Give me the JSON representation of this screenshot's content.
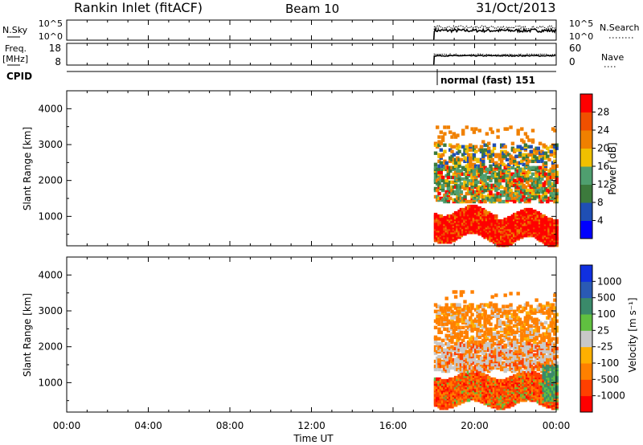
{
  "header": {
    "station": "Rankin Inlet (fitACF)",
    "beam": "Beam 10",
    "date": "31/Oct/2013"
  },
  "strips": {
    "nsky_label": "N.Sky",
    "nsky_ticks": [
      "10^5",
      "10^0"
    ],
    "nsearch_label": "N.Search",
    "nsearch_ticks": [
      "10^5",
      "10^0"
    ],
    "freq_label": "Freq.",
    "freq_unit": "[MHz]",
    "freq_ticks": [
      "18",
      "8"
    ],
    "nave_label": "Nave",
    "nave_ticks": [
      "60",
      "0"
    ],
    "cpid_label": "CPID",
    "cpid_value": "normal (fast) 151"
  },
  "chart_data": [
    {
      "type": "heatmap",
      "name": "power-panel",
      "ylabel": "Slant Range [km]",
      "yticks": [
        "4000",
        "3000",
        "2000",
        "1000"
      ],
      "ytick_values": [
        4000,
        3000,
        2000,
        1000
      ],
      "ylim": [
        180,
        4500
      ],
      "xlim": [
        0,
        24
      ],
      "colorbar": {
        "label": "Power [dB]",
        "ticks": [
          "28",
          "24",
          "20",
          "16",
          "12",
          "8",
          "4"
        ],
        "colors": [
          "#0000ff",
          "#1f4fb4",
          "#3c7a3c",
          "#4f9f6f",
          "#f0c000",
          "#f08000",
          "#f05000",
          "#ff0000"
        ]
      }
    },
    {
      "type": "heatmap",
      "name": "velocity-panel",
      "ylabel": "Slant Range [km]",
      "yticks": [
        "4000",
        "3000",
        "2000",
        "1000"
      ],
      "ytick_values": [
        4000,
        3000,
        2000,
        1000
      ],
      "ylim": [
        180,
        4500
      ],
      "xlim": [
        0,
        24
      ],
      "colorbar": {
        "label": "Velocity [m s⁻¹]",
        "ticks": [
          "1000",
          "500",
          "100",
          "25",
          "-25",
          "-100",
          "-500",
          "-1000"
        ],
        "colors": [
          "#ff0000",
          "#ff4000",
          "#ff8000",
          "#ffb000",
          "#c8c8c8",
          "#60c040",
          "#3a8a6a",
          "#2a5ab4",
          "#1030e0"
        ]
      }
    }
  ],
  "xaxis": {
    "ticks": [
      "00:00",
      "04:00",
      "08:00",
      "12:00",
      "16:00",
      "20:00",
      "00:00"
    ],
    "tick_values": [
      0,
      4,
      8,
      12,
      16,
      20,
      24
    ],
    "label": "Time UT"
  }
}
